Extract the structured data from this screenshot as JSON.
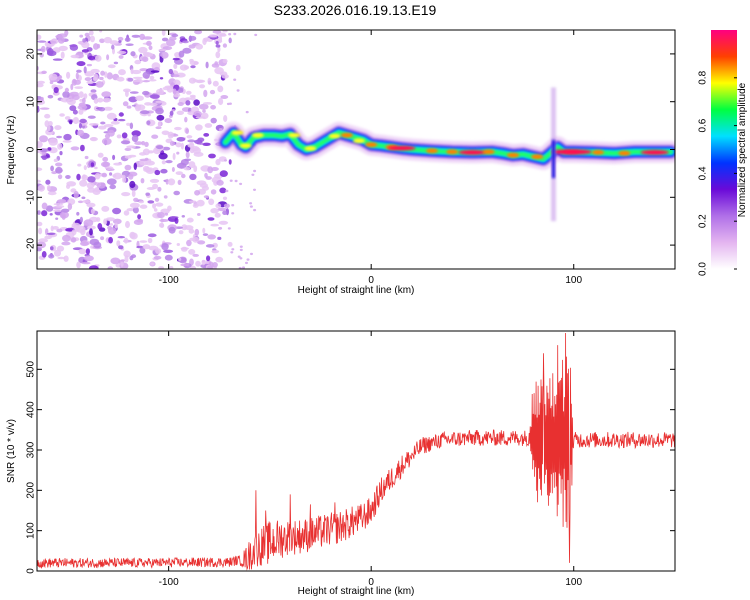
{
  "title": "S233.2026.016.19.13.E19",
  "chart_data": [
    {
      "type": "heatmap",
      "title": "S233.2026.016.19.13.E19",
      "xlabel": "Height of straight line (km)",
      "ylabel": "Frequency (Hz)",
      "xlim": [
        -165,
        150
      ],
      "ylim": [
        -25,
        25
      ],
      "x_ticks": [
        {
          "value": -100,
          "label": "-100"
        },
        {
          "value": 0,
          "label": "0"
        },
        {
          "value": 100,
          "label": "100"
        }
      ],
      "y_ticks": [
        {
          "value": -20,
          "label": "-20"
        },
        {
          "value": -10,
          "label": "-10"
        },
        {
          "value": 0,
          "label": "0"
        },
        {
          "value": 10,
          "label": "10"
        },
        {
          "value": 20,
          "label": "20"
        }
      ],
      "colorbar": {
        "label": "Normalized spectral amplitude",
        "range": [
          0,
          1
        ],
        "ticks": [
          {
            "value": 0.0,
            "label": "0.0"
          },
          {
            "value": 0.2,
            "label": "0.2"
          },
          {
            "value": 0.4,
            "label": "0.4"
          },
          {
            "value": 0.6,
            "label": "0.6"
          },
          {
            "value": 0.8,
            "label": "0.8"
          }
        ],
        "colors": [
          "#ffffff",
          "#e4b5f0",
          "#b070e8",
          "#6a0ad8",
          "#0033ff",
          "#00e0ff",
          "#00ff40",
          "#ffff00",
          "#ff4000",
          "#ff0080"
        ]
      },
      "noise_region_x": [
        -165,
        -72
      ],
      "ridge": [
        [
          -72,
          1.5
        ],
        [
          -68,
          3.5
        ],
        [
          -64,
          1.0
        ],
        [
          -62,
          0.5
        ],
        [
          -58,
          2.5
        ],
        [
          -53,
          3.0
        ],
        [
          -48,
          3.0
        ],
        [
          -44,
          2.8
        ],
        [
          -40,
          3.2
        ],
        [
          -36,
          1.0
        ],
        [
          -32,
          0.0
        ],
        [
          -28,
          0.5
        ],
        [
          -24,
          1.5
        ],
        [
          -20,
          2.5
        ],
        [
          -16,
          3.5
        ],
        [
          -12,
          3.0
        ],
        [
          -8,
          2.5
        ],
        [
          -4,
          2.0
        ],
        [
          0,
          1.0
        ],
        [
          5,
          0.8
        ],
        [
          10,
          0.5
        ],
        [
          15,
          0.2
        ],
        [
          20,
          0.0
        ],
        [
          30,
          -0.3
        ],
        [
          40,
          -0.5
        ],
        [
          50,
          -0.6
        ],
        [
          60,
          -0.5
        ],
        [
          65,
          -0.8
        ],
        [
          70,
          -1.2
        ],
        [
          75,
          -1.0
        ],
        [
          80,
          -1.5
        ],
        [
          85,
          -2.0
        ],
        [
          88,
          -1.0
        ],
        [
          92,
          0.5
        ],
        [
          95,
          -0.5
        ],
        [
          100,
          -0.5
        ],
        [
          110,
          -0.6
        ],
        [
          120,
          -0.8
        ],
        [
          130,
          -0.5
        ],
        [
          140,
          -0.5
        ],
        [
          148,
          -0.5
        ]
      ],
      "ridge_hotspots": [
        [
          -66,
          3.5,
          0.55
        ],
        [
          -62,
          0.8,
          0.5
        ],
        [
          -56,
          3.0,
          0.5
        ],
        [
          -38,
          3.0,
          0.55
        ],
        [
          -30,
          0.2,
          0.6
        ],
        [
          -18,
          2.8,
          0.6
        ],
        [
          -12,
          3.0,
          0.75
        ],
        [
          -6,
          1.8,
          0.6
        ],
        [
          0,
          1.0,
          0.75
        ],
        [
          10,
          0.5,
          0.7
        ],
        [
          15,
          0.3,
          1.0
        ],
        [
          30,
          -0.3,
          0.8
        ],
        [
          40,
          -0.5,
          0.85
        ],
        [
          50,
          -0.6,
          1.0
        ],
        [
          58,
          -0.5,
          0.85
        ],
        [
          70,
          -1.2,
          0.75
        ],
        [
          82,
          -1.5,
          0.7
        ],
        [
          96,
          -0.5,
          0.95
        ],
        [
          102,
          -0.5,
          1.0
        ],
        [
          112,
          -0.6,
          0.8
        ],
        [
          125,
          -0.8,
          0.75
        ],
        [
          140,
          -0.6,
          1.0
        ]
      ],
      "vertical_feature": {
        "x": 90,
        "y_range": [
          -15,
          13
        ]
      }
    },
    {
      "type": "line",
      "xlabel": "Height of straight line (km)",
      "ylabel": "SNR (10 * v/v)",
      "xlim": [
        -165,
        150
      ],
      "ylim": [
        0,
        595
      ],
      "color": "#e83030",
      "x_ticks": [
        {
          "value": -100,
          "label": "-100"
        },
        {
          "value": 0,
          "label": "0"
        },
        {
          "value": 100,
          "label": "100"
        }
      ],
      "y_ticks": [
        {
          "value": 0,
          "label": "0"
        },
        {
          "value": 100,
          "label": "100"
        },
        {
          "value": 200,
          "label": "200"
        },
        {
          "value": 300,
          "label": "300"
        },
        {
          "value": 400,
          "label": "400"
        },
        {
          "value": 500,
          "label": "500"
        }
      ],
      "trend": [
        [
          -165,
          20
        ],
        [
          -120,
          20
        ],
        [
          -70,
          22
        ],
        [
          -62,
          30
        ],
        [
          -55,
          60
        ],
        [
          -45,
          80
        ],
        [
          -30,
          90
        ],
        [
          -15,
          110
        ],
        [
          -5,
          130
        ],
        [
          0,
          150
        ],
        [
          5,
          200
        ],
        [
          15,
          260
        ],
        [
          25,
          310
        ],
        [
          35,
          325
        ],
        [
          50,
          330
        ],
        [
          75,
          330
        ],
        [
          80,
          330
        ],
        [
          95,
          320
        ],
        [
          100,
          325
        ],
        [
          120,
          325
        ],
        [
          150,
          325
        ]
      ],
      "noise_amplitude": [
        [
          -165,
          12
        ],
        [
          -65,
          12
        ],
        [
          -60,
          40
        ],
        [
          -50,
          55
        ],
        [
          -40,
          45
        ],
        [
          -10,
          40
        ],
        [
          10,
          30
        ],
        [
          30,
          20
        ],
        [
          78,
          20
        ],
        [
          80,
          150
        ],
        [
          98,
          230
        ],
        [
          100,
          20
        ],
        [
          150,
          20
        ]
      ],
      "spikes": [
        [
          -57,
          200
        ],
        [
          -52,
          150
        ],
        [
          -40,
          190
        ],
        [
          -30,
          165
        ],
        [
          -18,
          170
        ],
        [
          85,
          540
        ],
        [
          92,
          560
        ],
        [
          96,
          590
        ],
        [
          98,
          20
        ]
      ]
    }
  ]
}
